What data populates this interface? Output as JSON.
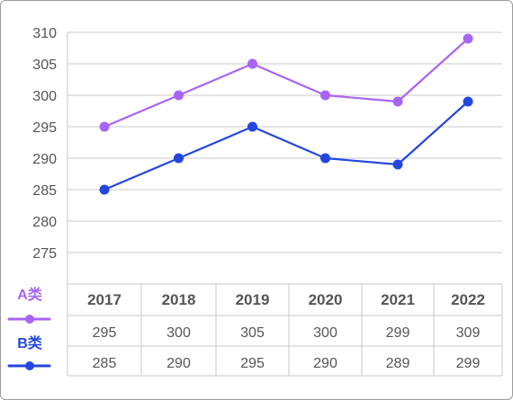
{
  "chart_data": {
    "type": "line",
    "title": "",
    "xlabel": "",
    "ylabel": "",
    "categories": [
      "2017",
      "2018",
      "2019",
      "2020",
      "2021",
      "2022"
    ],
    "ylim": [
      270,
      310
    ],
    "yticks": [
      275,
      280,
      285,
      290,
      295,
      300,
      305,
      310
    ],
    "grid": true,
    "legend": "left of data table",
    "series": [
      {
        "name": "A类",
        "color": "#a864f5",
        "values": [
          295,
          300,
          305,
          300,
          299,
          309
        ],
        "labels": [
          "295",
          "300",
          "305",
          "300",
          "299",
          "309"
        ]
      },
      {
        "name": "B类",
        "color": "#2346de",
        "values": [
          285,
          290,
          295,
          290,
          289,
          299
        ],
        "labels": [
          "285",
          "290",
          "295",
          "290",
          "289",
          "299"
        ]
      }
    ]
  }
}
